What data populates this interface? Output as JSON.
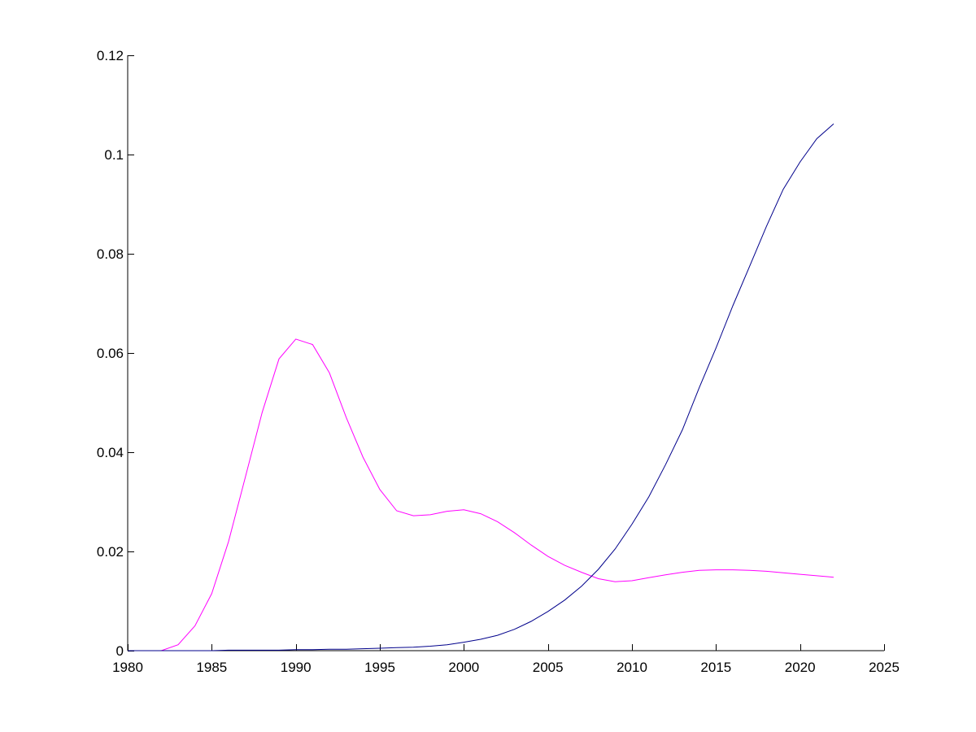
{
  "chart_data": {
    "type": "line",
    "title": "",
    "xlabel": "",
    "ylabel": "",
    "xlim": [
      1980,
      2025
    ],
    "ylim": [
      0,
      0.12
    ],
    "grid": false,
    "legend": "none",
    "x_ticks": [
      1980,
      1985,
      1990,
      1995,
      2000,
      2005,
      2010,
      2015,
      2020,
      2025
    ],
    "x_tick_labels": [
      "1980",
      "1985",
      "1990",
      "1995",
      "2000",
      "2005",
      "2010",
      "2015",
      "2020",
      "2025"
    ],
    "y_ticks": [
      0,
      0.02,
      0.04,
      0.06,
      0.08,
      0.1,
      0.12
    ],
    "y_tick_labels": [
      "0",
      "0.02",
      "0.04",
      "0.06",
      "0.08",
      "0.1",
      "0.12"
    ],
    "x": [
      1980,
      1981,
      1982,
      1983,
      1984,
      1985,
      1986,
      1987,
      1988,
      1989,
      1990,
      1991,
      1992,
      1993,
      1994,
      1995,
      1996,
      1997,
      1998,
      1999,
      2000,
      2001,
      2002,
      2003,
      2004,
      2005,
      2006,
      2007,
      2008,
      2009,
      2010,
      2011,
      2012,
      2013,
      2014,
      2015,
      2016,
      2017,
      2018,
      2019,
      2020,
      2021,
      2022
    ],
    "series": [
      {
        "color": "#ff00ff",
        "values": [
          0,
          0,
          0,
          0.0012,
          0.005,
          0.0115,
          0.022,
          0.035,
          0.048,
          0.0588,
          0.0628,
          0.0617,
          0.056,
          0.047,
          0.039,
          0.0325,
          0.0282,
          0.0272,
          0.0274,
          0.0281,
          0.0284,
          0.0276,
          0.026,
          0.0238,
          0.0213,
          0.019,
          0.0172,
          0.0158,
          0.0145,
          0.0139,
          0.0141,
          0.0147,
          0.0153,
          0.0158,
          0.0162,
          0.0163,
          0.0163,
          0.0162,
          0.016,
          0.0157,
          0.0154,
          0.0151,
          0.0148
        ]
      },
      {
        "color": "#00008b",
        "values": [
          0,
          0,
          0,
          0,
          0,
          0,
          0.0001,
          0.0001,
          0.0001,
          0.0001,
          0.0002,
          0.0002,
          0.0003,
          0.0003,
          0.0004,
          0.0005,
          0.0006,
          0.0007,
          0.0009,
          0.0012,
          0.0017,
          0.0023,
          0.0031,
          0.0043,
          0.0059,
          0.0079,
          0.0102,
          0.013,
          0.0164,
          0.0205,
          0.0255,
          0.031,
          0.0375,
          0.0445,
          0.053,
          0.061,
          0.0695,
          0.0775,
          0.0855,
          0.093,
          0.0985,
          0.1032,
          0.1062
        ]
      }
    ]
  }
}
